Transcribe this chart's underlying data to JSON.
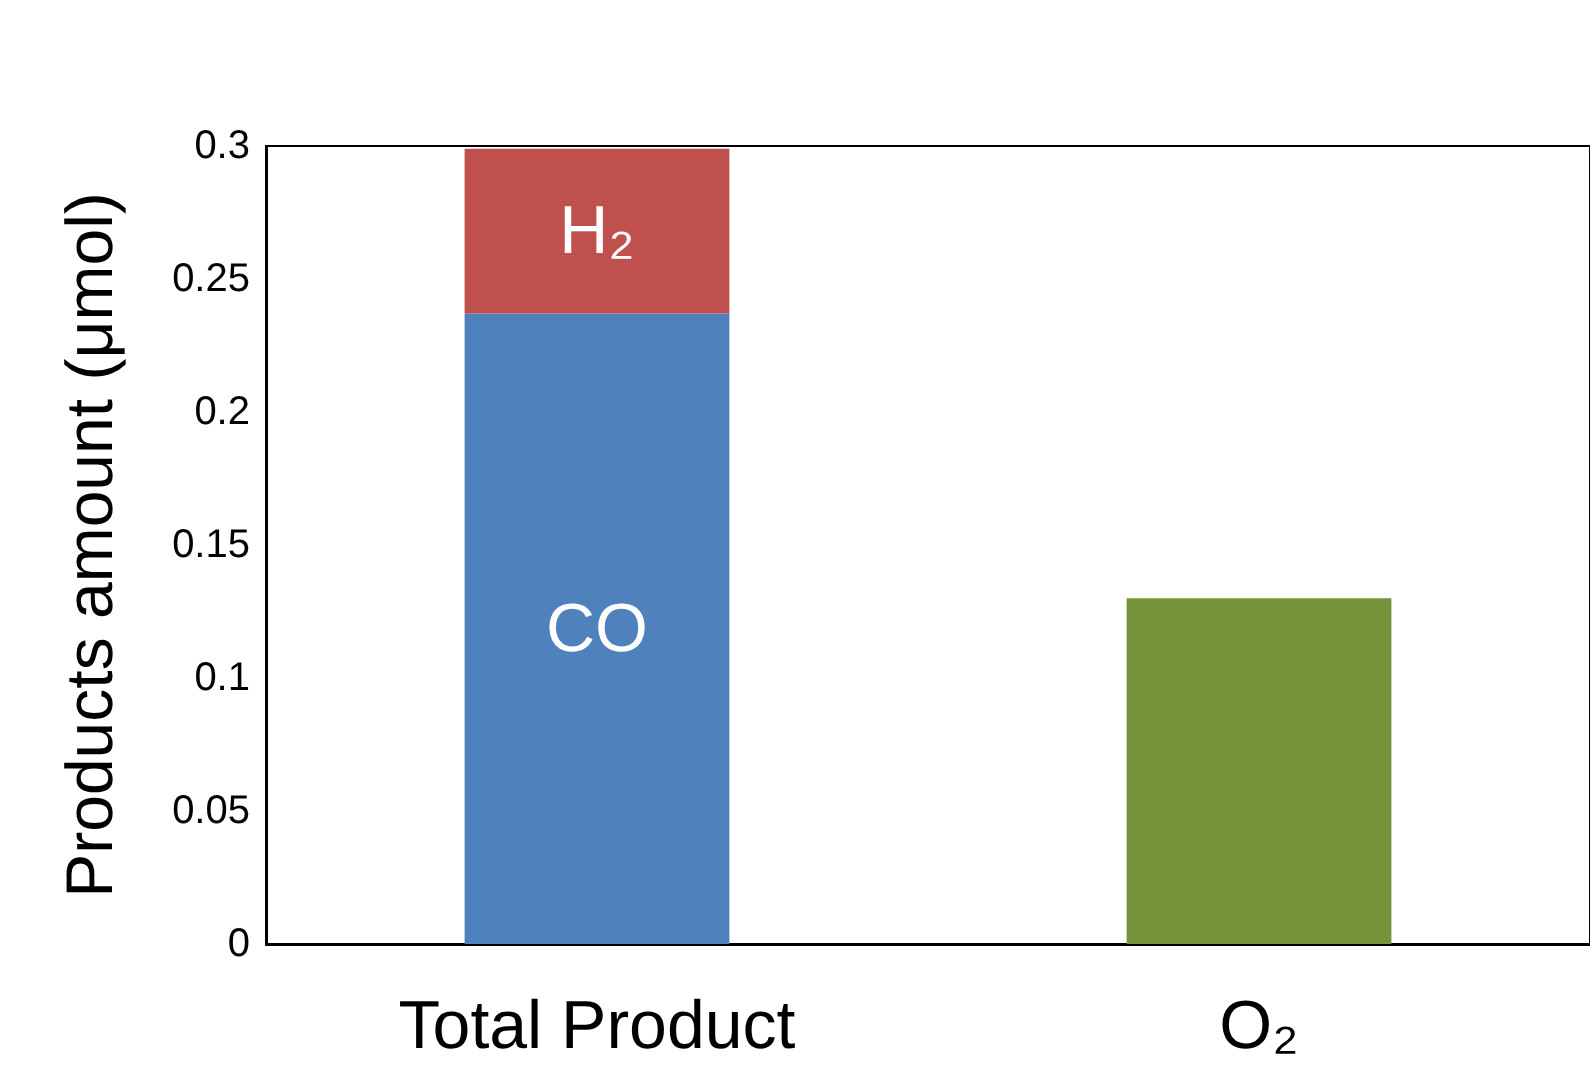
{
  "chart_data": {
    "type": "bar",
    "stacked": true,
    "ylabel": "Products amount (μmol)",
    "categories": [
      "Total Product",
      "O₂"
    ],
    "series": [
      {
        "name": "CO",
        "color": "#4f81bd",
        "values": [
          0.237,
          null
        ]
      },
      {
        "name": "H₂",
        "color": "#c0504d",
        "values": [
          0.062,
          null
        ]
      },
      {
        "color": "#77933c",
        "values": [
          null,
          0.13
        ]
      }
    ],
    "ylim": [
      0,
      0.3
    ],
    "yticks": [
      0,
      0.05,
      0.1,
      0.15,
      0.2,
      0.25,
      0.3
    ],
    "grid": false,
    "legend": false
  }
}
